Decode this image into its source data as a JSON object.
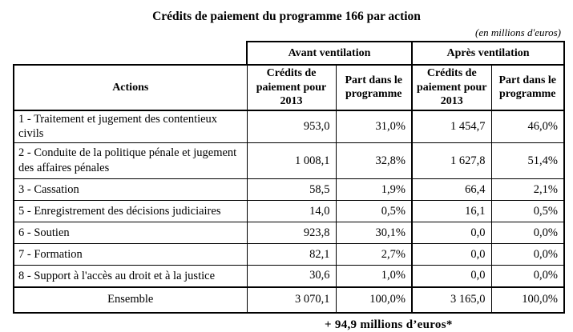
{
  "title": "Crédits de paiement du programme 166 par action",
  "unit_note": "(en millions d'euros)",
  "colors": {
    "text": "#000000",
    "border": "#000000",
    "background": "#ffffff"
  },
  "table": {
    "group_headers": {
      "avant": "Avant ventilation",
      "apres": "Après ventilation"
    },
    "col_headers": {
      "actions": "Actions",
      "credits": "Crédits de paiement pour 2013",
      "part": "Part dans le programme"
    },
    "rows": [
      {
        "action": "1 - Traitement et jugement des contentieux civils",
        "avant_credits": "953,0",
        "avant_part": "31,0%",
        "apres_credits": "1 454,7",
        "apres_part": "46,0%"
      },
      {
        "action": "2 - Conduite de la politique pénale et jugement des affaires pénales",
        "avant_credits": "1 008,1",
        "avant_part": "32,8%",
        "apres_credits": "1 627,8",
        "apres_part": "51,4%"
      },
      {
        "action": "3 - Cassation",
        "avant_credits": "58,5",
        "avant_part": "1,9%",
        "apres_credits": "66,4",
        "apres_part": "2,1%"
      },
      {
        "action": "5 - Enregistrement des décisions judiciaires",
        "avant_credits": "14,0",
        "avant_part": "0,5%",
        "apres_credits": "16,1",
        "apres_part": "0,5%"
      },
      {
        "action": "6 - Soutien",
        "avant_credits": "923,8",
        "avant_part": "30,1%",
        "apres_credits": "0,0",
        "apres_part": "0,0%"
      },
      {
        "action": "7 - Formation",
        "avant_credits": "82,1",
        "avant_part": "2,7%",
        "apres_credits": "0,0",
        "apres_part": "0,0%"
      },
      {
        "action": "8 - Support à l'accès au droit et à la justice",
        "avant_credits": "30,6",
        "avant_part": "1,0%",
        "apres_credits": "0,0",
        "apres_part": "0,0%"
      }
    ],
    "total_row": {
      "label": "Ensemble",
      "avant_credits": "3 070,1",
      "avant_part": "100,0%",
      "apres_credits": "3 165,0",
      "apres_part": "100,0%"
    }
  },
  "footnote": "+ 94,9 millions d’euros*"
}
